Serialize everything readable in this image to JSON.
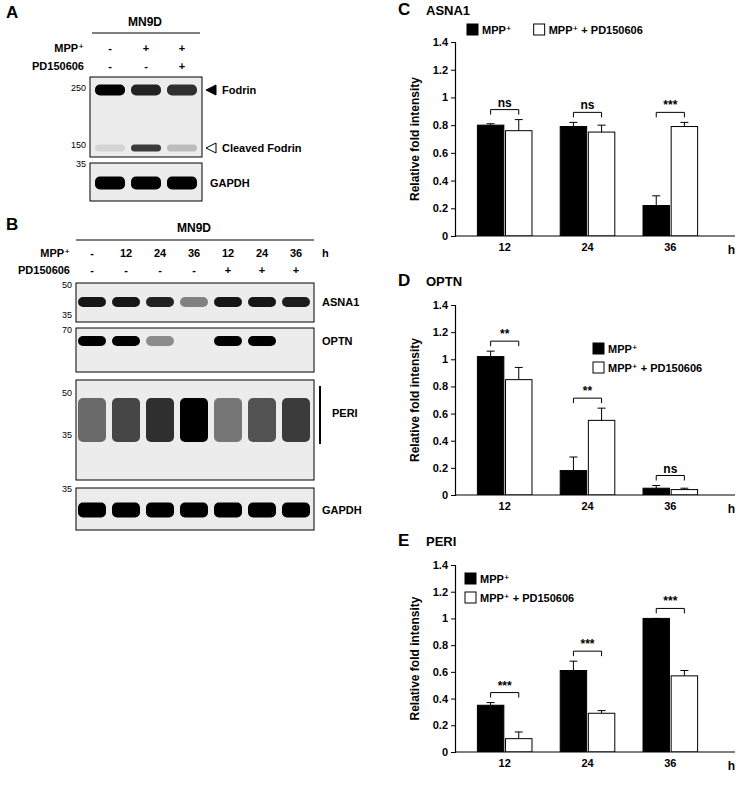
{
  "blots": [
    {
      "panel": "A",
      "cell_line": "MN9D",
      "conditions": [
        {
          "label": "MPP⁺",
          "lanes": [
            "-",
            "+",
            "+"
          ]
        },
        {
          "label": "PD150606",
          "lanes": [
            "-",
            "-",
            "+"
          ]
        }
      ],
      "membranes": [
        {
          "markers": [
            250,
            150
          ],
          "bands": [
            {
              "label": "Fodrin",
              "intensity": [
                1.0,
                0.85,
                0.8
              ]
            },
            {
              "label": "Cleaved Fodrin",
              "intensity": [
                0.1,
                0.75,
                0.2
              ]
            }
          ]
        },
        {
          "markers": [
            35
          ],
          "bands": [
            {
              "label": "GAPDH",
              "intensity": [
                1.0,
                1.0,
                1.0
              ]
            }
          ]
        }
      ]
    },
    {
      "panel": "B",
      "cell_line": "MN9D",
      "conditions": [
        {
          "label": "MPP⁺",
          "lanes": [
            "-",
            "12",
            "24",
            "36",
            "12",
            "24",
            "36"
          ],
          "unit": "h"
        },
        {
          "label": "PD150606",
          "lanes": [
            "-",
            "-",
            "-",
            "-",
            "+",
            "+",
            "+"
          ]
        }
      ],
      "membranes": [
        {
          "markers": [
            50,
            35
          ],
          "bands": [
            {
              "label": "ASNA1",
              "intensity": [
                0.9,
                0.9,
                0.85,
                0.45,
                0.9,
                0.9,
                0.88
              ]
            }
          ]
        },
        {
          "markers": [
            70
          ],
          "bands": [
            {
              "label": "OPTN",
              "intensity": [
                1.0,
                1.0,
                0.4,
                0.0,
                1.0,
                1.0,
                0.0
              ]
            }
          ]
        },
        {
          "markers": [
            50,
            35
          ],
          "bands": [
            {
              "label": "PERI",
              "intensity": [
                0.55,
                0.7,
                0.8,
                1.0,
                0.5,
                0.65,
                0.75
              ]
            }
          ]
        },
        {
          "markers": [
            35
          ],
          "bands": [
            {
              "label": "GAPDH",
              "intensity": [
                1.0,
                1.0,
                1.0,
                1.0,
                1.0,
                1.0,
                1.0
              ]
            }
          ]
        }
      ]
    }
  ],
  "chart_data": [
    {
      "type": "bar",
      "panel": "C",
      "title": "ASNA1",
      "x_label": "h",
      "y_label": "Relative fold intensity",
      "categories": [
        "12",
        "24",
        "36"
      ],
      "series": [
        {
          "name": "MPP⁺",
          "color": "#000000",
          "values": [
            0.8,
            0.79,
            0.22
          ],
          "errors": [
            0.01,
            0.03,
            0.07
          ]
        },
        {
          "name": "MPP⁺ + PD150606",
          "color": "#ffffff",
          "values": [
            0.76,
            0.75,
            0.79
          ],
          "errors": [
            0.08,
            0.05,
            0.03
          ]
        }
      ],
      "annotations": [
        "ns",
        "ns",
        "***"
      ],
      "ylim": [
        0,
        1.4
      ],
      "yticks": [
        0,
        0.2,
        0.4,
        0.6,
        0.8,
        1,
        1.2,
        1.4
      ],
      "legend": "top"
    },
    {
      "type": "bar",
      "panel": "D",
      "title": "OPTN",
      "x_label": "h",
      "y_label": "Relative fold intensity",
      "categories": [
        "12",
        "24",
        "36"
      ],
      "series": [
        {
          "name": "MPP⁺",
          "color": "#000000",
          "values": [
            1.02,
            0.18,
            0.05
          ],
          "errors": [
            0.04,
            0.1,
            0.02
          ]
        },
        {
          "name": "MPP⁺ + PD150606",
          "color": "#ffffff",
          "values": [
            0.85,
            0.55,
            0.04
          ],
          "errors": [
            0.09,
            0.09,
            0.01
          ]
        }
      ],
      "annotations": [
        "**",
        "**",
        "ns"
      ],
      "ylim": [
        0,
        1.4
      ],
      "yticks": [
        0,
        0.2,
        0.4,
        0.6,
        0.8,
        1,
        1.2,
        1.4
      ],
      "legend": "right"
    },
    {
      "type": "bar",
      "panel": "E",
      "title": "PERI",
      "x_label": "h",
      "y_label": "Relative fold intensity",
      "categories": [
        "12",
        "24",
        "36"
      ],
      "series": [
        {
          "name": "MPP⁺",
          "color": "#000000",
          "values": [
            0.35,
            0.61,
            1.0
          ],
          "errors": [
            0.02,
            0.07,
            0
          ]
        },
        {
          "name": "MPP⁺ + PD150606",
          "color": "#ffffff",
          "values": [
            0.1,
            0.29,
            0.57
          ],
          "errors": [
            0.05,
            0.02,
            0.04
          ]
        }
      ],
      "annotations": [
        "***",
        "***",
        "***"
      ],
      "ylim": [
        0,
        1.4
      ],
      "yticks": [
        0,
        0.2,
        0.4,
        0.6,
        0.8,
        1,
        1.2,
        1.4
      ],
      "legend": "top-left"
    }
  ]
}
